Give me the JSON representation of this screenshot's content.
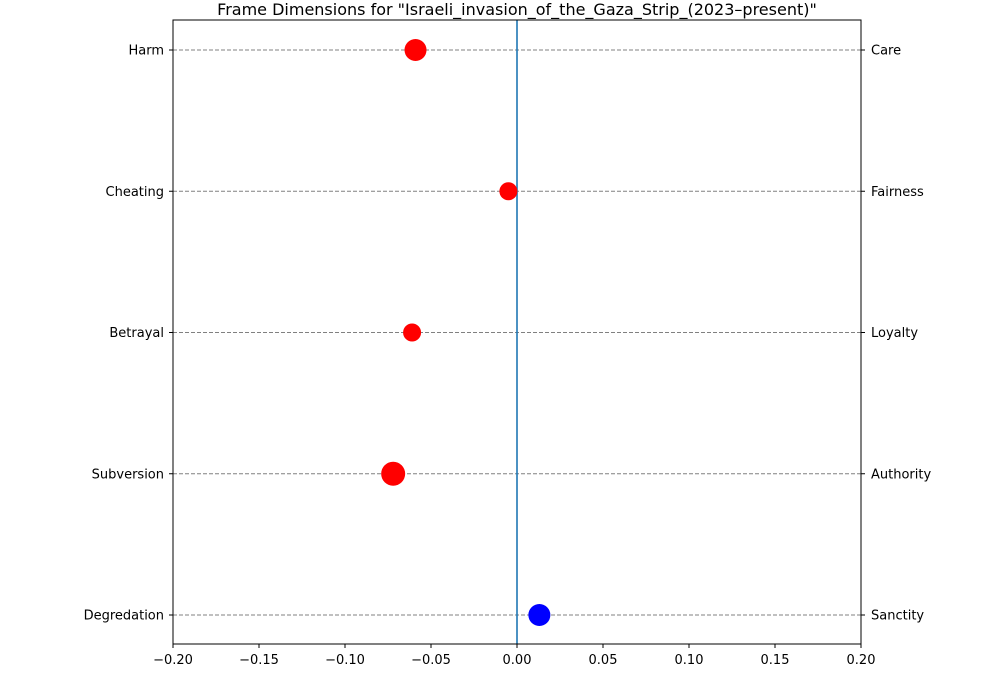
{
  "chart_data": {
    "type": "scatter",
    "title": "Frame Dimensions for \"Israeli_invasion_of_the_Gaza_Strip_(2023–present)\"",
    "xlabel": "",
    "ylabel": "",
    "xlim": [
      -0.2,
      0.2
    ],
    "x_ticks": [
      -0.2,
      -0.15,
      -0.1,
      -0.05,
      0.0,
      0.05,
      0.1,
      0.15,
      0.2
    ],
    "x_tick_labels": [
      "−0.20",
      "−0.15",
      "−0.10",
      "−0.05",
      "0.00",
      "0.05",
      "0.10",
      "0.15",
      "0.20"
    ],
    "categories_left": [
      "Harm",
      "Cheating",
      "Betrayal",
      "Subversion",
      "Degredation"
    ],
    "categories_right": [
      "Care",
      "Fairness",
      "Loyalty",
      "Authority",
      "Sanctity"
    ],
    "values": [
      -0.059,
      -0.005,
      -0.061,
      -0.072,
      0.013
    ],
    "point_colors": [
      "#ff0000",
      "#ff0000",
      "#ff0000",
      "#ff0000",
      "#0000ff"
    ],
    "point_magnitude_relative": [
      1.1,
      0.9,
      0.9,
      1.2,
      1.1
    ],
    "reference_line_x": 0.0,
    "reference_line_color": "#1f77b4",
    "grid": "horizontal dashed lines at each category",
    "grid_color": "#808080"
  }
}
